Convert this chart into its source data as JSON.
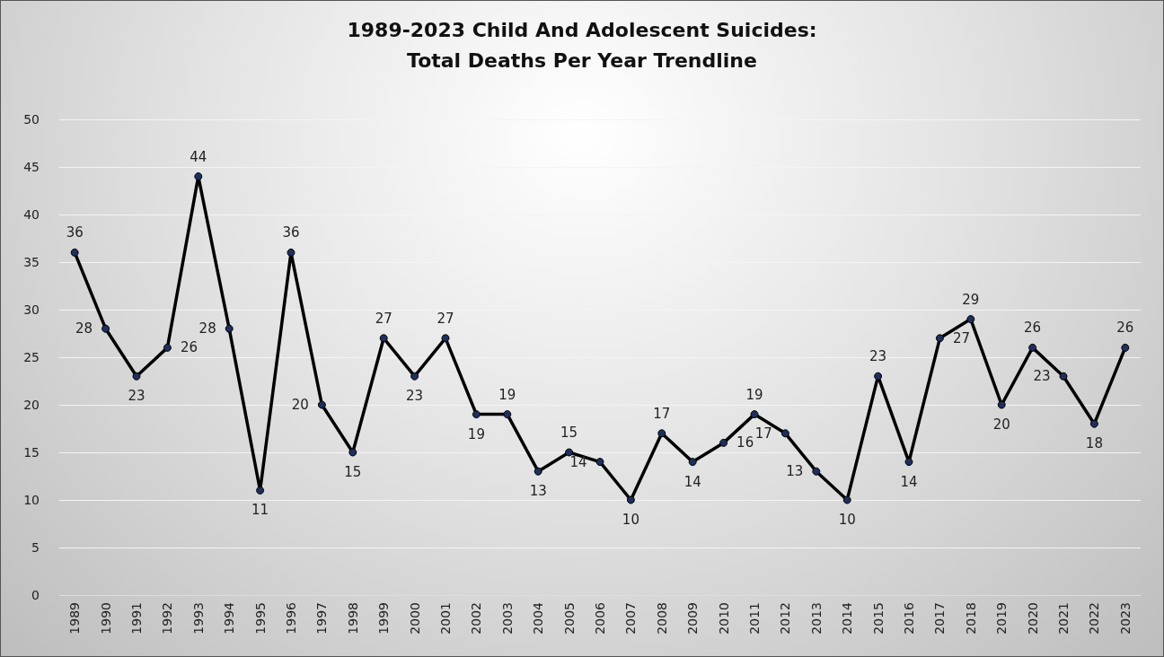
{
  "chart_data": {
    "type": "line",
    "title": "1989-2023 Child And Adolescent Suicides:\nTotal Deaths Per Year Trendline",
    "categories": [
      "1989",
      "1990",
      "1991",
      "1992",
      "1993",
      "1994",
      "1995",
      "1996",
      "1997",
      "1998",
      "1999",
      "2000",
      "2001",
      "2002",
      "2003",
      "2004",
      "2005",
      "2006",
      "2007",
      "2008",
      "2009",
      "2010",
      "2011",
      "2012",
      "2013",
      "2014",
      "2015",
      "2016",
      "2017",
      "2018",
      "2019",
      "2020",
      "2021",
      "2022",
      "2023"
    ],
    "series": [
      {
        "color": "#000000",
        "values": [
          36,
          28,
          23,
          26,
          44,
          28,
          11,
          36,
          20,
          15,
          27,
          23,
          27,
          19,
          19,
          13,
          15,
          14,
          10,
          17,
          14,
          16,
          19,
          17,
          13,
          10,
          23,
          14,
          27,
          29,
          20,
          26,
          23,
          18,
          26
        ]
      }
    ],
    "ylim": [
      0,
      50
    ],
    "yticks": [
      0,
      5,
      10,
      15,
      20,
      25,
      30,
      35,
      40,
      45,
      50
    ],
    "grid": "y",
    "marker": "circle",
    "line_style": "solid",
    "data_labels": true
  }
}
